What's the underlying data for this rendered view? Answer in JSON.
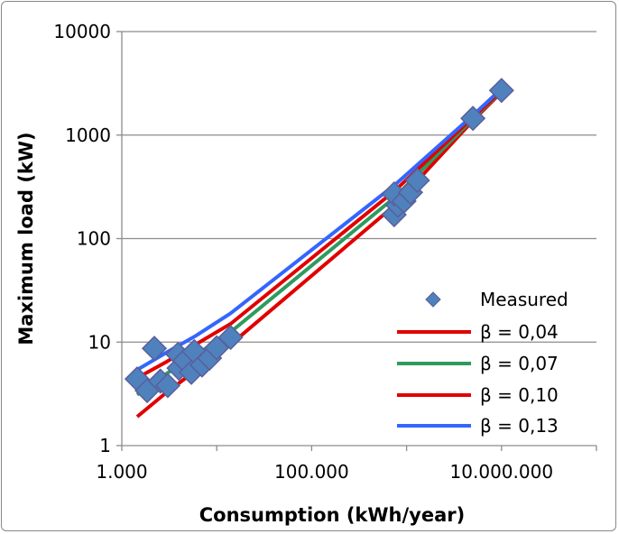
{
  "chart_data": {
    "type": "scatter",
    "title": "",
    "xlabel": "Consumption (kWh/year)",
    "ylabel": "Maximum load  (kW)",
    "xscale": "log",
    "yscale": "log",
    "xlim": [
      1000,
      100000000
    ],
    "ylim": [
      1,
      10000
    ],
    "x_ticks": [
      1000,
      100000,
      10000000
    ],
    "x_tick_labels": [
      "1.000",
      "100.000",
      "10.000.000"
    ],
    "y_ticks": [
      1,
      10,
      100,
      1000,
      10000
    ],
    "y_tick_labels": [
      "1",
      "10",
      "100",
      "1000",
      "10000"
    ],
    "grid": "horizontal",
    "legend_position": "bottom-right",
    "measured": {
      "name": "Measured",
      "color": "#4F81BD",
      "x": [
        1450,
        1850,
        2200,
        2550,
        3050,
        3900,
        4000,
        4600,
        5400,
        5800,
        7000,
        8400,
        10000,
        14000,
        740000,
        810000,
        740000,
        940000,
        1100000,
        1300000,
        5000000,
        10000000
      ],
      "y": [
        4.4,
        3.4,
        8.7,
        4.2,
        3.8,
        7.6,
        5.6,
        6.6,
        5.1,
        8.1,
        6.0,
        7.0,
        8.8,
        11.1,
        170,
        210,
        270,
        230,
        280,
        365,
        1450,
        2700
      ]
    },
    "series": [
      {
        "name": "β = 0,04",
        "color": "#E00000",
        "x": [
          1450,
          3000,
          6000,
          14000,
          750000,
          5000000,
          10000000
        ],
        "y": [
          1.9,
          3.3,
          5.3,
          9.5,
          210,
          1380,
          2600
        ]
      },
      {
        "name": "β = 0,07",
        "color": "#2E9B5E",
        "x": [
          1450,
          3000,
          6000,
          14000,
          750000,
          5000000,
          10000000
        ],
        "y": [
          3.1,
          5,
          7.5,
          12.5,
          250,
          1430,
          2650
        ]
      },
      {
        "name": "β = 0,10",
        "color": "#E00000",
        "x": [
          1450,
          3000,
          6000,
          14000,
          750000,
          5000000,
          10000000
        ],
        "y": [
          4.5,
          6.5,
          9.5,
          15,
          290,
          1480,
          2700
        ]
      },
      {
        "name": "β = 0,13",
        "color": "#3366FF",
        "x": [
          1450,
          3000,
          6000,
          14000,
          750000,
          5000000,
          10000000
        ],
        "y": [
          5.4,
          8,
          11.5,
          19,
          330,
          1550,
          2800
        ]
      }
    ]
  }
}
